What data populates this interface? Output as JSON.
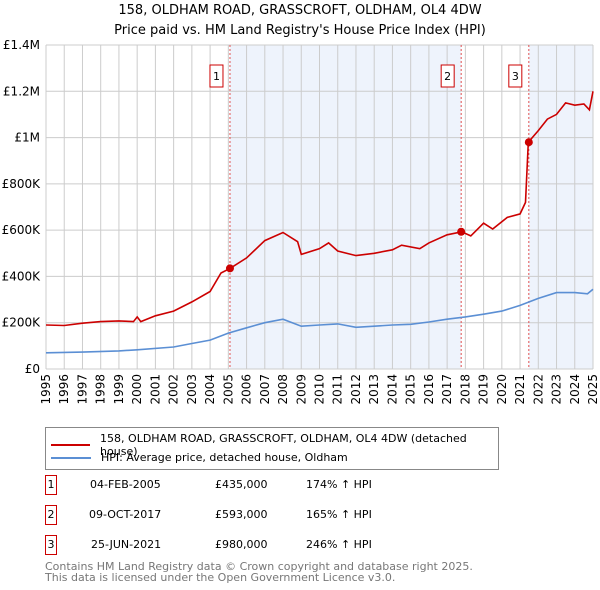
{
  "chart_data": {
    "type": "line",
    "title": "158, OLDHAM ROAD, GRASSCROFT, OLDHAM, OL4 4DW",
    "subtitle": "Price paid vs. HM Land Registry's House Price Index (HPI)",
    "xlim": [
      1995,
      2025
    ],
    "ylim": [
      0,
      1400000
    ],
    "y_ticks": [
      {
        "v": 0,
        "label": "£0"
      },
      {
        "v": 200000,
        "label": "£200K"
      },
      {
        "v": 400000,
        "label": "£400K"
      },
      {
        "v": 600000,
        "label": "£600K"
      },
      {
        "v": 800000,
        "label": "£800K"
      },
      {
        "v": 1000000,
        "label": "£1M"
      },
      {
        "v": 1200000,
        "label": "£1.2M"
      },
      {
        "v": 1400000,
        "label": "£1.4M"
      }
    ],
    "x_ticks": [
      "1995",
      "1996",
      "1997",
      "1998",
      "1999",
      "2000",
      "2001",
      "2002",
      "2003",
      "2004",
      "2005",
      "2006",
      "2007",
      "2008",
      "2009",
      "2010",
      "2011",
      "2012",
      "2013",
      "2014",
      "2015",
      "2016",
      "2017",
      "2018",
      "2019",
      "2020",
      "2021",
      "2022",
      "2023",
      "2024",
      "2025"
    ],
    "grid": true,
    "series": [
      {
        "name": "158, OLDHAM ROAD, GRASSCROFT, OLDHAM, OL4 4DW (detached house)",
        "color": "#cc0000",
        "x": [
          1995,
          1996,
          1997,
          1998,
          1999,
          1999.8,
          2000,
          2000.2,
          2001,
          2002,
          2003,
          2004,
          2004.6,
          2005.1,
          2006,
          2007,
          2008,
          2008.8,
          2009,
          2010,
          2010.5,
          2011,
          2012,
          2013,
          2014,
          2014.5,
          2015.5,
          2016,
          2017,
          2017.8,
          2018.3,
          2019,
          2019.5,
          2020.3,
          2021,
          2021.3,
          2021.45,
          2022,
          2022.5,
          2023,
          2023.5,
          2024,
          2024.5,
          2024.8,
          2025
        ],
        "y": [
          190000,
          188000,
          198000,
          205000,
          208000,
          205000,
          225000,
          205000,
          230000,
          250000,
          290000,
          335000,
          415000,
          435000,
          480000,
          555000,
          590000,
          550000,
          495000,
          520000,
          545000,
          510000,
          490000,
          500000,
          515000,
          535000,
          520000,
          545000,
          580000,
          593000,
          575000,
          630000,
          605000,
          655000,
          670000,
          720000,
          980000,
          1030000,
          1080000,
          1100000,
          1150000,
          1140000,
          1145000,
          1120000,
          1200000
        ]
      },
      {
        "name": "HPI: Average price, detached house, Oldham",
        "color": "#5b8fd4",
        "x": [
          1995,
          1997,
          1999,
          2000,
          2002,
          2003,
          2004,
          2005,
          2006,
          2007,
          2008,
          2009,
          2010,
          2011,
          2012,
          2013,
          2014,
          2015,
          2016,
          2017,
          2018,
          2019,
          2020,
          2021,
          2022,
          2023,
          2024,
          2024.7,
          2025
        ],
        "y": [
          70000,
          73000,
          78000,
          83000,
          95000,
          110000,
          125000,
          155000,
          178000,
          200000,
          215000,
          185000,
          190000,
          195000,
          180000,
          185000,
          190000,
          193000,
          203000,
          215000,
          225000,
          237000,
          250000,
          275000,
          305000,
          330000,
          330000,
          325000,
          345000
        ]
      }
    ],
    "sales": [
      {
        "id": "1",
        "x": 2005.09,
        "price": 435000,
        "date": "04-FEB-2005",
        "price_label": "£435,000",
        "hpi": "174% ↑ HPI"
      },
      {
        "id": "2",
        "x": 2017.77,
        "price": 593000,
        "date": "09-OCT-2017",
        "price_label": "£593,000",
        "hpi": "165% ↑ HPI"
      },
      {
        "id": "3",
        "x": 2021.48,
        "price": 980000,
        "date": "25-JUN-2021",
        "price_label": "£980,000",
        "hpi": "246% ↑ HPI"
      }
    ],
    "shaded_ranges": [
      [
        2005.09,
        2017.77
      ],
      [
        2021.48,
        2025
      ]
    ]
  },
  "footer": {
    "line1": "Contains HM Land Registry data © Crown copyright and database right 2025.",
    "line2": "This data is licensed under the Open Government Licence v3.0."
  }
}
